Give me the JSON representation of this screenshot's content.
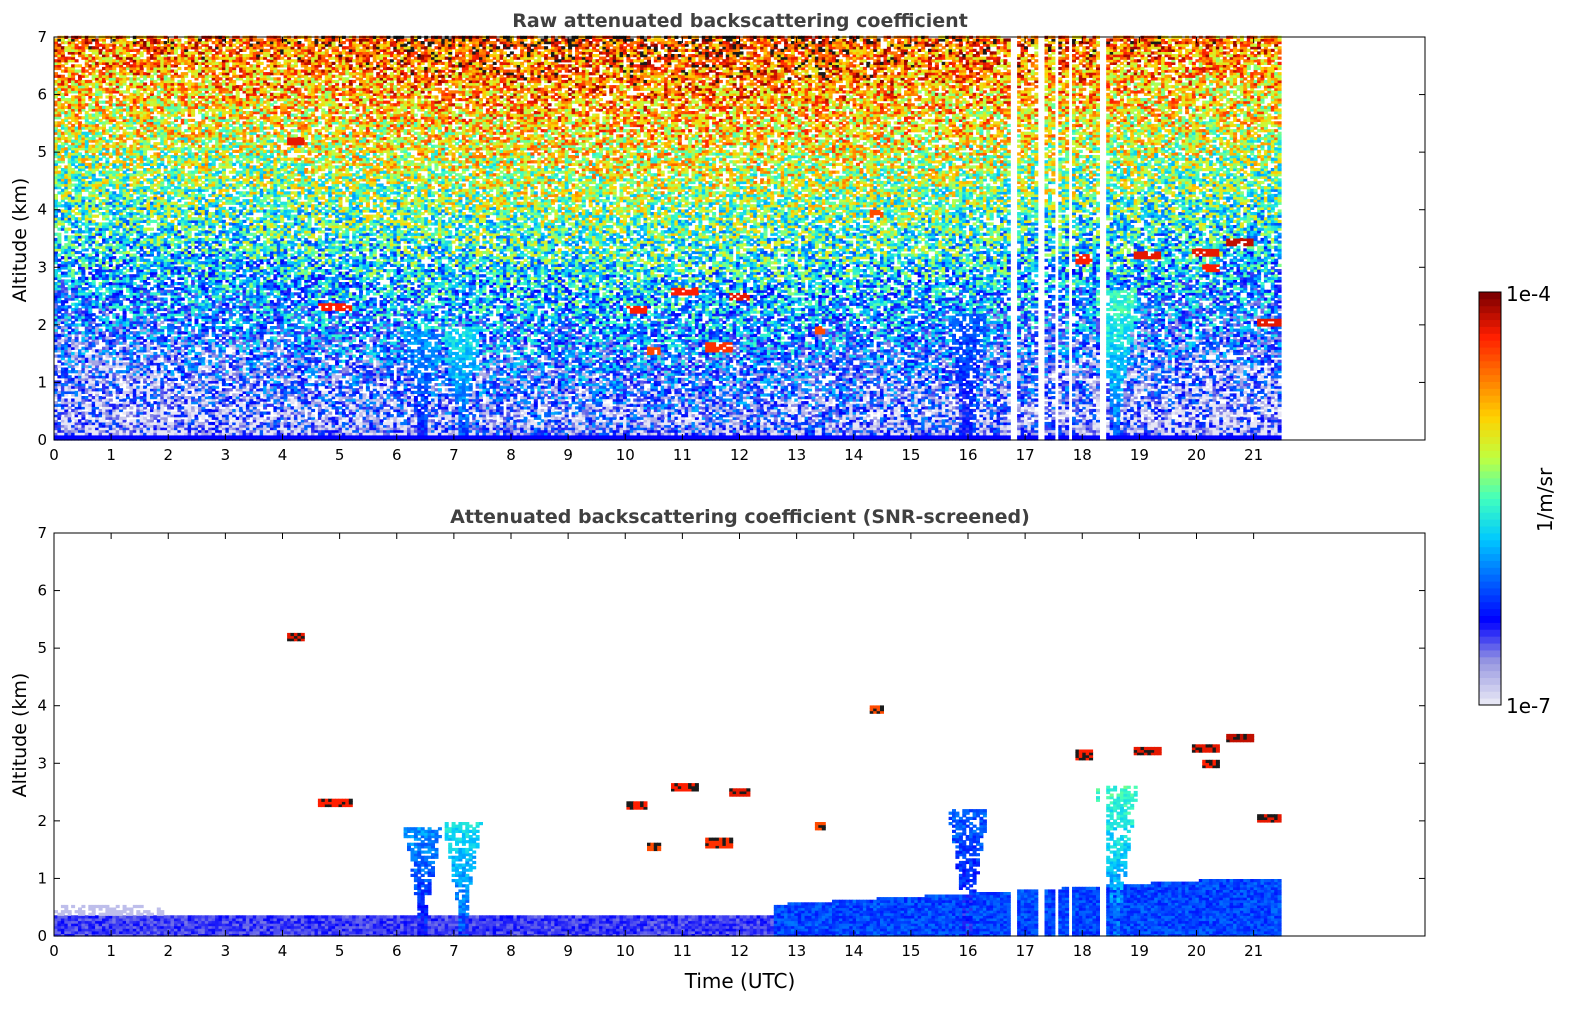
{
  "chart_data": [
    {
      "type": "heatmap",
      "title": "Raw attenuated backscattering coefficient",
      "xlabel": "",
      "ylabel": "Altitude (km)",
      "xlim": [
        0,
        24
      ],
      "ylim": [
        0,
        7
      ],
      "xticks": [
        "0",
        "1",
        "2",
        "3",
        "4",
        "5",
        "6",
        "7",
        "8",
        "9",
        "10",
        "11",
        "12",
        "13",
        "14",
        "15",
        "16",
        "17",
        "18",
        "19",
        "20",
        "21"
      ],
      "yticks": [
        "0",
        "1",
        "2",
        "3",
        "4",
        "5",
        "6",
        "7"
      ],
      "data_time_range": [
        0,
        21.45
      ],
      "data_gaps_utc": [
        16.8,
        17.3,
        17.55,
        17.8,
        18.35
      ],
      "layers": [
        {
          "t0": 4.1,
          "t1": 4.4,
          "z": 5.2,
          "level": 0.92
        },
        {
          "t0": 4.6,
          "t1": 5.2,
          "z": 2.33,
          "level": 0.9
        },
        {
          "t0": 10.0,
          "t1": 10.4,
          "z": 2.28,
          "level": 0.9
        },
        {
          "t0": 10.8,
          "t1": 11.3,
          "z": 2.58,
          "level": 0.9
        },
        {
          "t0": 11.8,
          "t1": 12.2,
          "z": 2.5,
          "level": 0.92
        },
        {
          "t0": 11.4,
          "t1": 11.9,
          "z": 1.62,
          "level": 0.88
        },
        {
          "t0": 10.4,
          "t1": 10.6,
          "z": 1.55,
          "level": 0.85
        },
        {
          "t0": 13.3,
          "t1": 13.5,
          "z": 1.9,
          "level": 0.85
        },
        {
          "t0": 14.3,
          "t1": 14.5,
          "z": 3.93,
          "level": 0.85
        },
        {
          "t0": 17.9,
          "t1": 18.2,
          "z": 3.15,
          "level": 0.9
        },
        {
          "t0": 18.9,
          "t1": 19.4,
          "z": 3.2,
          "level": 0.92
        },
        {
          "t0": 19.9,
          "t1": 20.4,
          "z": 3.25,
          "level": 0.92
        },
        {
          "t0": 20.5,
          "t1": 21.0,
          "z": 3.45,
          "level": 0.95
        },
        {
          "t0": 20.1,
          "t1": 20.4,
          "z": 2.98,
          "level": 0.9
        },
        {
          "t0": 21.05,
          "t1": 21.45,
          "z": 2.05,
          "level": 0.92
        }
      ],
      "aerosol_plumes": [
        {
          "t": 6.45,
          "z_top": 1.9,
          "level": 0.35
        },
        {
          "t": 7.15,
          "z_top": 2.0,
          "level": 0.45
        },
        {
          "t": 16.0,
          "z_top": 2.2,
          "level": 0.3
        },
        {
          "t": 18.6,
          "z_top": 2.6,
          "level": 0.5
        }
      ]
    },
    {
      "type": "heatmap",
      "title": "Attenuated backscattering coefficient (SNR-screened)",
      "xlabel": "Time (UTC)",
      "ylabel": "Altitude (km)",
      "xlim": [
        0,
        24
      ],
      "ylim": [
        0,
        7
      ],
      "xticks": [
        "0",
        "1",
        "2",
        "3",
        "4",
        "5",
        "6",
        "7",
        "8",
        "9",
        "10",
        "11",
        "12",
        "13",
        "14",
        "15",
        "16",
        "17",
        "18",
        "19",
        "20",
        "21"
      ],
      "yticks": [
        "0",
        "1",
        "2",
        "3",
        "4",
        "5",
        "6",
        "7"
      ],
      "data_time_range": [
        0,
        21.45
      ]
    }
  ],
  "colorbar": {
    "label": "1/m/sr",
    "max_label": "1e-4",
    "min_label": "1e-7",
    "colormap": [
      "#e6e6f5",
      "#9696e0",
      "#0000ff",
      "#0064ff",
      "#00c8ff",
      "#40ffbf",
      "#c0ff40",
      "#ffd200",
      "#ff7800",
      "#ff1e00",
      "#800000"
    ]
  }
}
